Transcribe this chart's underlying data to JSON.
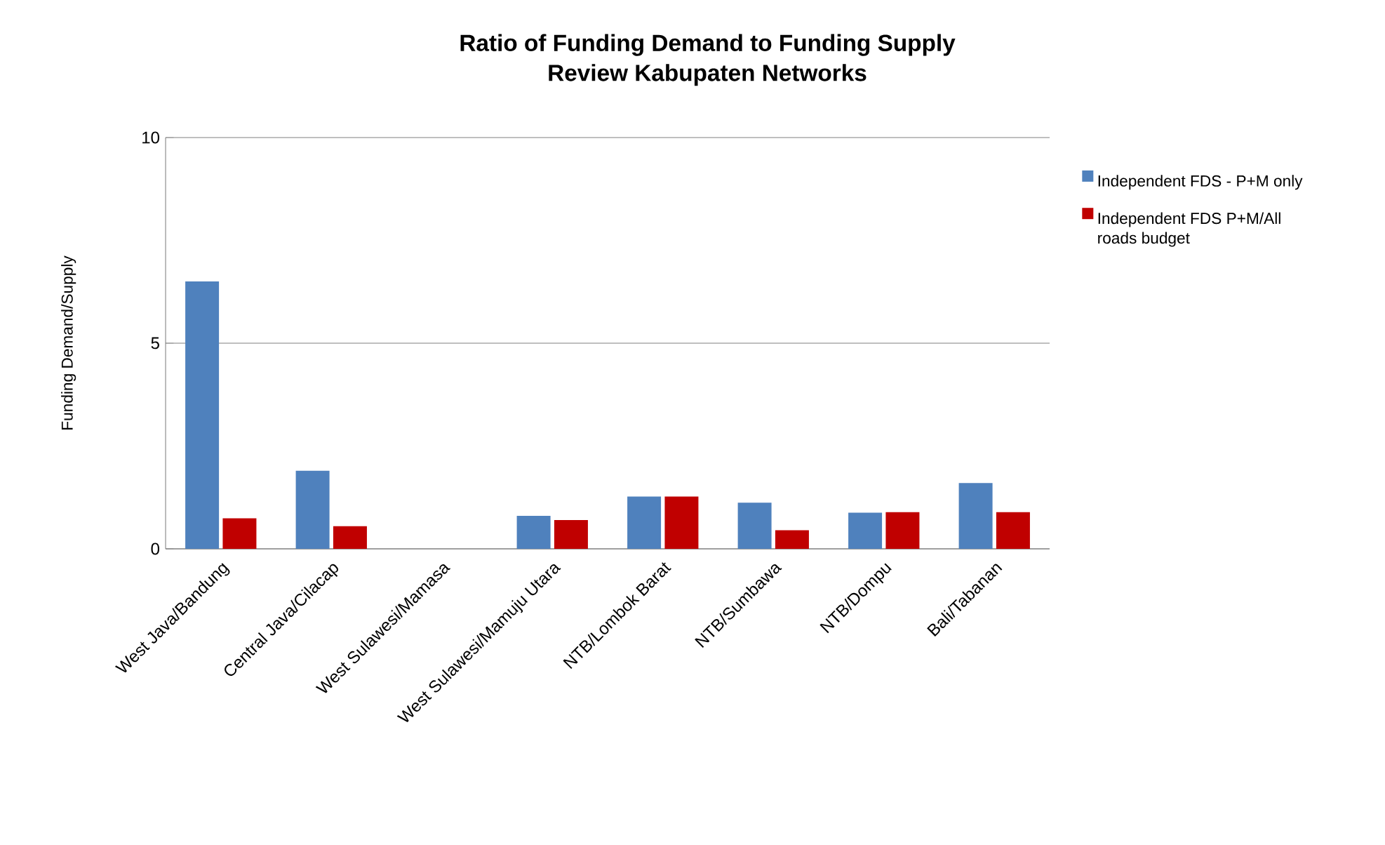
{
  "chart_data": {
    "type": "bar",
    "title": "Ratio of Funding Demand to Funding Supply\nReview Kabupaten Networks",
    "ylabel": "Funding Demand/Supply",
    "categories": [
      "West Java/Bandung",
      "Central Java/Cilacap",
      "West Sulawesi/Mamasa",
      "West Sulawesi/Mamuju  Utara",
      "NTB/Lombok Barat",
      "NTB/Sumbawa",
      "NTB/Dompu",
      "Bali/Tabanan"
    ],
    "series": [
      {
        "name": "Independent  FDS - P+M only",
        "color": "#4f81bd",
        "values": [
          6.5,
          1.9,
          0,
          0.8,
          1.27,
          1.12,
          0.88,
          1.6
        ]
      },
      {
        "name": "Independent  FDS P+M/All roads budget",
        "color": "#c00000",
        "values": [
          0.74,
          0.55,
          0,
          0.7,
          1.27,
          0.45,
          0.89,
          0.89
        ]
      }
    ],
    "ylim": [
      0,
      10
    ],
    "yticks": [
      0,
      5,
      10
    ],
    "grid": "y",
    "legend": "right"
  }
}
